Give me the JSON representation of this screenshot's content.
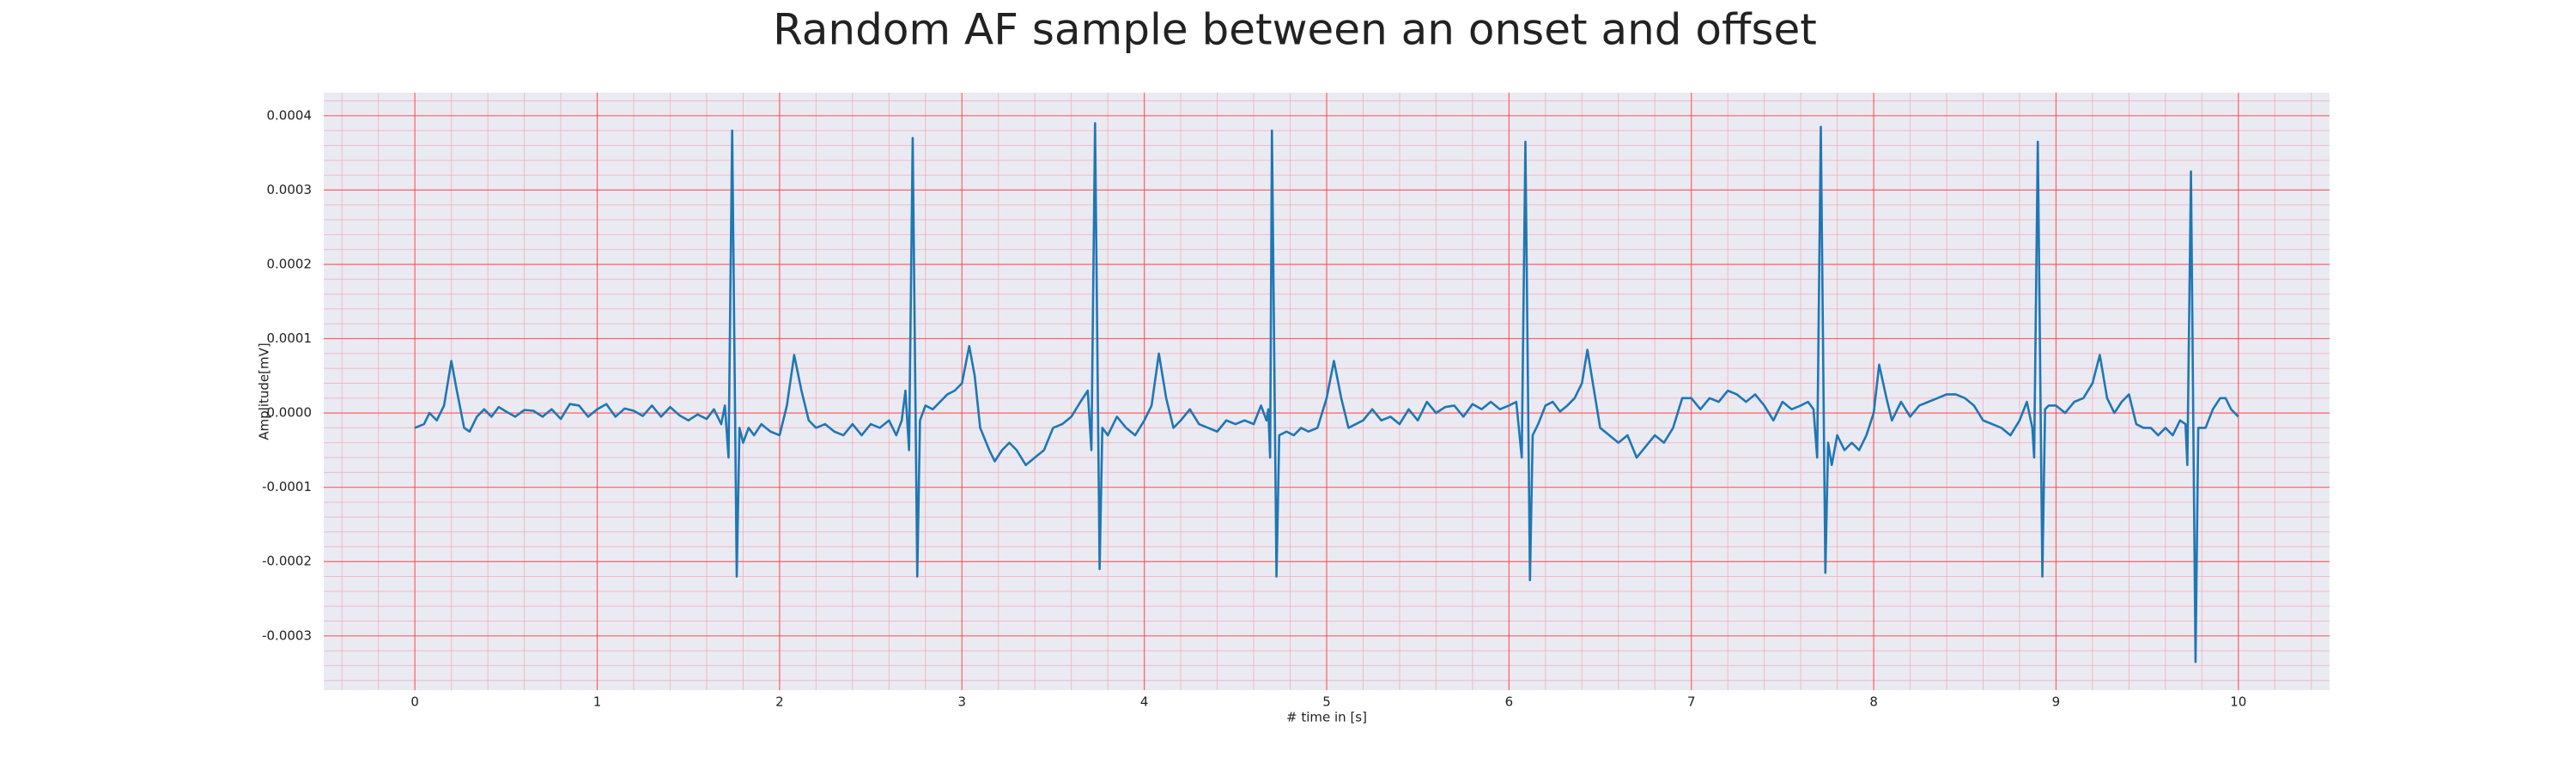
{
  "chart_data": {
    "type": "line",
    "title": "Random AF sample between an onset and offset",
    "xlabel": "# time in [s]",
    "ylabel": "Amplitude[mV]",
    "color": "#1f77b4",
    "grid": true,
    "minor_grid": true,
    "xlim": [
      -0.5,
      10.5
    ],
    "ylim": [
      -0.000373,
      0.000431
    ],
    "xticks": [
      0,
      1,
      2,
      3,
      4,
      5,
      6,
      7,
      8,
      9,
      10
    ],
    "yticks": [
      -0.0003,
      -0.0002,
      -0.0001,
      {
        "value": 0,
        "label": "0.0000"
      },
      0.0001,
      0.0002,
      0.0003,
      0.0004
    ],
    "x": [
      0,
      0.05,
      0.08,
      0.12,
      0.16,
      0.2,
      0.23,
      0.27,
      0.3,
      0.34,
      0.38,
      0.42,
      0.46,
      0.5,
      0.55,
      0.6,
      0.65,
      0.7,
      0.75,
      0.8,
      0.85,
      0.9,
      0.95,
      1.0,
      1.05,
      1.1,
      1.15,
      1.2,
      1.25,
      1.3,
      1.35,
      1.4,
      1.45,
      1.5,
      1.55,
      1.6,
      1.64,
      1.68,
      1.7,
      1.72,
      1.74,
      1.765,
      1.78,
      1.8,
      1.83,
      1.86,
      1.9,
      1.95,
      2.0,
      2.04,
      2.08,
      2.12,
      2.16,
      2.2,
      2.25,
      2.3,
      2.35,
      2.4,
      2.45,
      2.5,
      2.55,
      2.6,
      2.64,
      2.67,
      2.69,
      2.71,
      2.73,
      2.755,
      2.77,
      2.8,
      2.84,
      2.88,
      2.92,
      2.96,
      3.0,
      3.04,
      3.07,
      3.1,
      3.15,
      3.18,
      3.22,
      3.26,
      3.3,
      3.35,
      3.4,
      3.45,
      3.5,
      3.55,
      3.6,
      3.65,
      3.69,
      3.71,
      3.73,
      3.755,
      3.77,
      3.8,
      3.85,
      3.9,
      3.95,
      4.0,
      4.04,
      4.08,
      4.12,
      4.16,
      4.2,
      4.25,
      4.3,
      4.35,
      4.4,
      4.45,
      4.5,
      4.55,
      4.6,
      4.64,
      4.67,
      4.68,
      4.69,
      4.7,
      4.725,
      4.74,
      4.78,
      4.82,
      4.86,
      4.9,
      4.95,
      5.0,
      5.04,
      5.08,
      5.12,
      5.16,
      5.2,
      5.25,
      5.3,
      5.35,
      5.4,
      5.45,
      5.5,
      5.55,
      5.6,
      5.65,
      5.7,
      5.75,
      5.8,
      5.85,
      5.9,
      5.95,
      6.0,
      6.04,
      6.07,
      6.09,
      6.115,
      6.13,
      6.16,
      6.2,
      6.24,
      6.28,
      6.32,
      6.36,
      6.4,
      6.43,
      6.46,
      6.5,
      6.55,
      6.6,
      6.65,
      6.7,
      6.75,
      6.8,
      6.85,
      6.9,
      6.95,
      7.0,
      7.05,
      7.1,
      7.15,
      7.2,
      7.25,
      7.3,
      7.35,
      7.4,
      7.45,
      7.5,
      7.55,
      7.6,
      7.64,
      7.67,
      7.69,
      7.71,
      7.735,
      7.75,
      7.77,
      7.8,
      7.84,
      7.88,
      7.92,
      7.96,
      8.0,
      8.03,
      8.07,
      8.1,
      8.15,
      8.2,
      8.25,
      8.3,
      8.35,
      8.4,
      8.45,
      8.5,
      8.55,
      8.6,
      8.65,
      8.7,
      8.75,
      8.8,
      8.84,
      8.87,
      8.88,
      8.9,
      8.925,
      8.94,
      8.96,
      9.0,
      9.05,
      9.1,
      9.15,
      9.2,
      9.24,
      9.28,
      9.32,
      9.36,
      9.4,
      9.44,
      9.48,
      9.52,
      9.56,
      9.6,
      9.64,
      9.68,
      9.71,
      9.72,
      9.74,
      9.765,
      9.78,
      9.82,
      9.86,
      9.9,
      9.93,
      9.96,
      10.0
    ],
    "values": [
      -2e-05,
      -1.5e-05,
      0,
      -1e-05,
      1e-05,
      7e-05,
      3e-05,
      -2e-05,
      -2.5e-05,
      -5e-06,
      5e-06,
      -5e-06,
      8e-06,
      2e-06,
      -5e-06,
      4e-06,
      3e-06,
      -5e-06,
      5e-06,
      -8e-06,
      1.2e-05,
      1e-05,
      -5e-06,
      5e-06,
      1.2e-05,
      -5e-06,
      6e-06,
      3e-06,
      -4e-06,
      1e-05,
      -5e-06,
      8e-06,
      -3e-06,
      -1e-05,
      -2e-06,
      -8e-06,
      5e-06,
      -1.5e-05,
      1e-05,
      -6e-05,
      0.00038,
      -0.00022,
      -2e-05,
      -4e-05,
      -2e-05,
      -3e-05,
      -1.5e-05,
      -2.5e-05,
      -3e-05,
      1e-05,
      7.8e-05,
      3e-05,
      -1e-05,
      -2e-05,
      -1.5e-05,
      -2.5e-05,
      -3e-05,
      -1.5e-05,
      -3e-05,
      -1.5e-05,
      -2e-05,
      -1e-05,
      -3e-05,
      -1e-05,
      3e-05,
      -5e-05,
      0.00037,
      -0.00022,
      -1e-05,
      1e-05,
      5e-06,
      1.5e-05,
      2.5e-05,
      3e-05,
      4e-05,
      9e-05,
      5e-05,
      -2e-05,
      -5e-05,
      -6.5e-05,
      -5e-05,
      -4e-05,
      -5e-05,
      -7e-05,
      -6e-05,
      -5e-05,
      -2e-05,
      -1.5e-05,
      -5e-06,
      1.5e-05,
      3e-05,
      -5e-05,
      0.00039,
      -0.00021,
      -2e-05,
      -3e-05,
      -5e-06,
      -2e-05,
      -3e-05,
      -1e-05,
      1e-05,
      8e-05,
      2e-05,
      -2e-05,
      -1e-05,
      5e-06,
      -1.5e-05,
      -2e-05,
      -2.5e-05,
      -1e-05,
      -1.5e-05,
      -1e-05,
      -1.5e-05,
      1e-05,
      -1e-05,
      5e-06,
      -6e-05,
      0.00038,
      -0.00022,
      -3e-05,
      -2.5e-05,
      -3e-05,
      -2e-05,
      -2.5e-05,
      -2e-05,
      2e-05,
      7e-05,
      2e-05,
      -2e-05,
      -1.5e-05,
      -1e-05,
      5e-06,
      -1e-05,
      -5e-06,
      -1.5e-05,
      5e-06,
      -1e-05,
      1.5e-05,
      0,
      8e-06,
      1e-05,
      -5e-06,
      1.2e-05,
      5e-06,
      1.5e-05,
      5e-06,
      1e-05,
      1.5e-05,
      -6e-05,
      0.000365,
      -0.000225,
      -3e-05,
      -1.5e-05,
      1e-05,
      1.5e-05,
      2e-06,
      1e-05,
      2e-05,
      4e-05,
      8.5e-05,
      4e-05,
      -2e-05,
      -3e-05,
      -4e-05,
      -3e-05,
      -6e-05,
      -4.5e-05,
      -3e-05,
      -4e-05,
      -2e-05,
      2e-05,
      2e-05,
      5e-06,
      2e-05,
      1.5e-05,
      3e-05,
      2.5e-05,
      1.5e-05,
      2.5e-05,
      1e-05,
      -1e-05,
      1.5e-05,
      5e-06,
      1e-05,
      1.5e-05,
      5e-06,
      -6e-05,
      0.000385,
      -0.000215,
      -4e-05,
      -7e-05,
      -3e-05,
      -5e-05,
      -4e-05,
      -5e-05,
      -3e-05,
      0,
      6.5e-05,
      2e-05,
      -1e-05,
      1.5e-05,
      -5e-06,
      1e-05,
      1.5e-05,
      2e-05,
      2.5e-05,
      2.5e-05,
      2e-05,
      1e-05,
      -1e-05,
      -1.5e-05,
      -2e-05,
      -3e-05,
      -1e-05,
      1.5e-05,
      -2e-05,
      -6e-05,
      0.000365,
      -0.00022,
      5e-06,
      1e-05,
      1e-05,
      0,
      1.5e-05,
      2e-05,
      4e-05,
      7.8e-05,
      2e-05,
      0,
      1.5e-05,
      2.5e-05,
      -1.5e-05,
      -2e-05,
      -2e-05,
      -3e-05,
      -2e-05,
      -3e-05,
      -1e-05,
      -1.5e-05,
      -7e-05,
      0.000325,
      -0.000335,
      -2e-05,
      -2e-05,
      5e-06,
      2e-05,
      2e-05,
      5e-06,
      -5e-06
    ]
  }
}
